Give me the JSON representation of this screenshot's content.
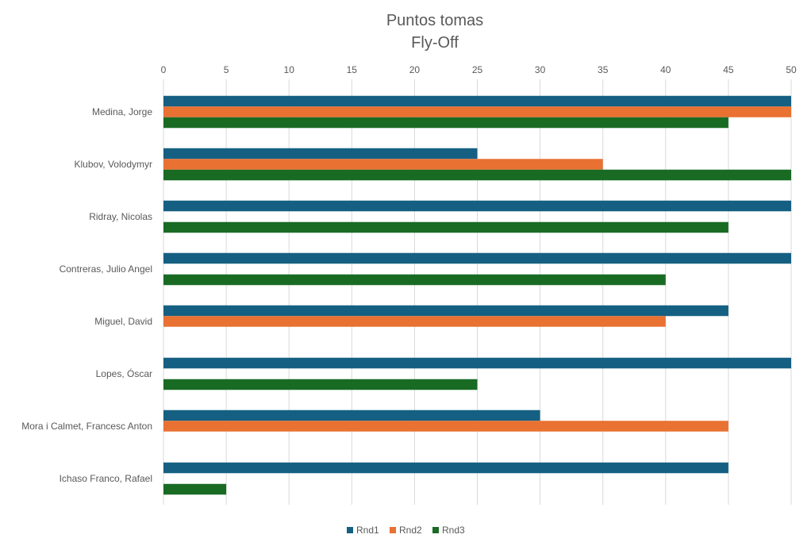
{
  "chart_data": {
    "type": "bar",
    "orientation": "horizontal",
    "title": "Puntos tomas",
    "subtitle": "Fly-Off",
    "xlabel": "",
    "ylabel": "",
    "xlim": [
      0,
      50
    ],
    "x_ticks": [
      0,
      5,
      10,
      15,
      20,
      25,
      30,
      35,
      40,
      45,
      50
    ],
    "x_axis_position": "top",
    "grid": true,
    "legend_position": "bottom",
    "categories": [
      "Medina, Jorge",
      "Klubov, Volodymyr",
      "Ridray, Nicolas",
      "Contreras, Julio Angel",
      "Miguel, David",
      "Lopes, Óscar",
      "Mora i Calmet, Francesc Anton",
      "Ichaso Franco, Rafael"
    ],
    "series": [
      {
        "name": "Rnd1",
        "color": "#156082",
        "values": [
          50,
          25,
          50,
          50,
          45,
          50,
          30,
          45
        ]
      },
      {
        "name": "Rnd2",
        "color": "#E97132",
        "values": [
          50,
          35,
          null,
          null,
          40,
          null,
          45,
          null
        ]
      },
      {
        "name": "Rnd3",
        "color": "#196B24",
        "values": [
          45,
          50,
          45,
          40,
          null,
          25,
          null,
          5
        ]
      }
    ]
  }
}
